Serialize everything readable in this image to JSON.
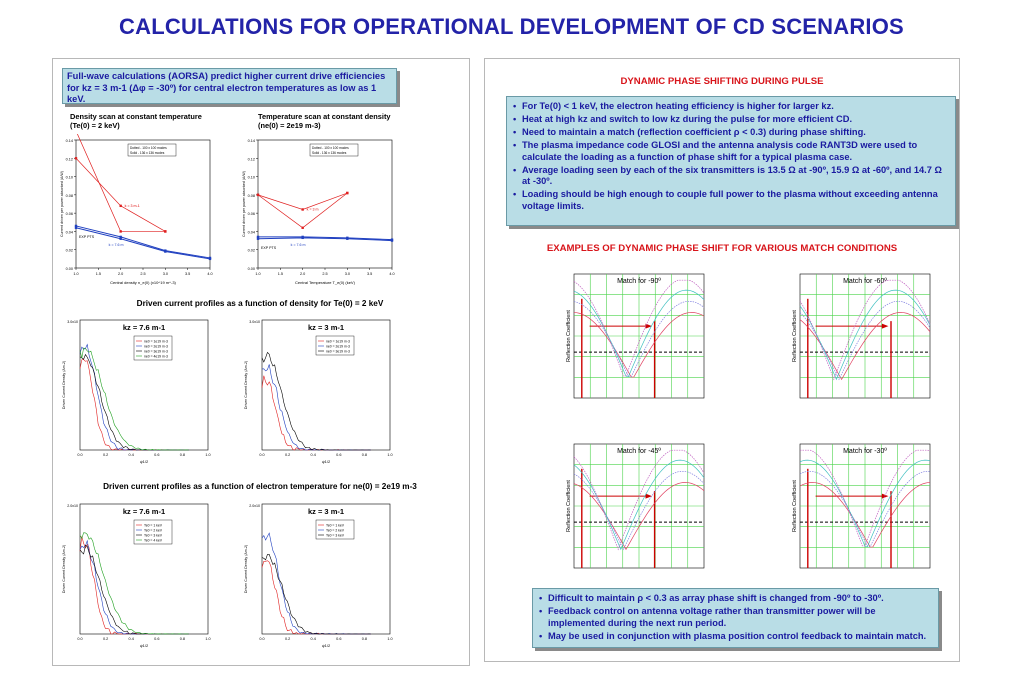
{
  "title": "CALCULATIONS FOR OPERATIONAL DEVELOPMENT OF CD SCENARIOS",
  "left_callout": "Full-wave calculations (AORSA) predict higher current drive efficiencies for kz = 3 m-1 (Δφ = -30º) for central electron temperatures as low as 1 keV.",
  "scan_density": {
    "caption_line1": "Density scan at constant temperature",
    "caption_line2": "(Te(0) = 2 keV)",
    "legend_dotted": "Dotted - 100 x 100 modes",
    "legend_solid": "Solid - 136 x 136 modes",
    "xlabel": "Central density n_e(0) (x10^19 m^-3)",
    "ylabel": "Current driven per power absorbed (A/W)",
    "label_k3": "k = 3 m-1",
    "label_k76": "k = 7.6 m",
    "label_exp": "EXP PTS"
  },
  "scan_temperature": {
    "caption_line1": "Temperature scan at constant density",
    "caption_line2": "(ne(0) = 2e19 m-3)",
    "legend_dotted": "Dotted - 100 x 100 modes",
    "legend_solid": "Solid - 136 x 136 modes",
    "xlabel": "Central Temperature T_e(0) (keV)",
    "ylabel": "Current driven per power absorbed (A/W)",
    "label_k3": "k = 3 m",
    "label_k76": "k = 7.6 m",
    "label_exp": "EXP PTS"
  },
  "density_profiles_caption": "Driven current profiles as a function of density for Te(0) = 2 keV",
  "temperature_profiles_caption": "Driven current profiles as a function of electron temperature for ne(0) = 2e19 m-3",
  "profile_plots": {
    "kz76_title": "kz = 7.6 m-1",
    "kz3_title": "kz = 3 m-1",
    "ylabel": "Driven Current Density (Am-2)",
    "xlabel": "ψ1/2",
    "density_legend_76": [
      "ne0 = 1e19 m-3",
      "ne0 = 2e19 m-3",
      "ne0 = 3e19 m-3",
      "ne0 = 4e19 m-3"
    ],
    "density_legend_3": [
      "ne0 = 1e19 m-3",
      "ne0 = 2e19 m-3",
      "ne0 = 3e19 m-3"
    ],
    "temp_legend_76": [
      "Te0 = 1 keV",
      "Te0 = 2 keV",
      "Te0 = 3 keV",
      "Te0 = 4 keV"
    ],
    "temp_legend_3": [
      "Te0 = 1 keV",
      "Te0 = 2 keV",
      "Te0 = 3 keV"
    ],
    "ymax_density": "3.0x10",
    "ymax_temp": "2.0x10"
  },
  "right_heading": "DYNAMIC PHASE SHIFTING DURING PULSE",
  "right_bullets": [
    "For Te(0) < 1 keV, the electron heating efficiency is higher for larger kz.",
    "Heat at high kz and switch to low kz during the pulse for more efficient CD.",
    "Need to maintain a match (reflection coefficient ρ < 0.3) during phase shifting.",
    "The plasma impedance code GLOSI and the antenna analysis code RANT3D were used to calculate the loading as a function of phase shift for a typical plasma case.",
    "Average loading seen by each of the six transmitters is 13.5 Ω at -90º, 15.9 Ω at -60º, and 14.7 Ω at -30º.",
    "Loading should be high enough to couple full power to the plasma without exceeding antenna voltage limits."
  ],
  "examples_heading": "EXAMPLES OF DYNAMIC PHASE SHIFT FOR VARIOUS MATCH CONDITIONS",
  "match_plots": [
    {
      "title": "Match for -90º",
      "ylabel": "Reflection Coefficient"
    },
    {
      "title": "Match for -60º",
      "ylabel": "Reflection Coefficient"
    },
    {
      "title": "Match for -45º",
      "ylabel": "Reflection Coefficient"
    },
    {
      "title": "Match for -30º",
      "ylabel": "Reflection Coefficient"
    }
  ],
  "bottom_bullets": [
    "Difficult to maintain ρ < 0.3 as array phase shift is changed from -90º to -30º.",
    "Feedback control on antenna voltage rather than transmitter power will be implemented during the next run period.",
    "May be used in conjunction with plasma position control feedback to maintain match."
  ],
  "chart_data": [
    {
      "type": "line",
      "title": "Density scan at constant temperature (Te(0) = 2 keV)",
      "xlabel": "Central density n_e(0) (x10^19 m^-3)",
      "ylabel": "Current driven per power absorbed (A/W)",
      "xlim": [
        1.0,
        4.0
      ],
      "ylim": [
        0.0,
        0.14
      ],
      "series": [
        {
          "name": "k = 3 m-1",
          "x": [
            1.0,
            2.0,
            3.0
          ],
          "values": [
            0.12,
            0.068,
            0.04
          ]
        },
        {
          "name": "k = 3 m-1",
          "x": [
            1.0,
            2.0,
            3.0
          ],
          "values": [
            0.15,
            0.04,
            0.04
          ]
        },
        {
          "name": "k = 7.6 m",
          "x": [
            1.0,
            2.0,
            3.0,
            4.0
          ],
          "values": [
            0.046,
            0.034,
            0.019,
            0.011
          ]
        },
        {
          "name": "k = 7.6 m",
          "x": [
            1.0,
            2.0,
            3.0,
            4.0
          ],
          "values": [
            0.044,
            0.032,
            0.018,
            0.01
          ]
        }
      ]
    },
    {
      "type": "line",
      "title": "Temperature scan at constant density (ne(0) = 2e19 m-3)",
      "xlabel": "Central Temperature T_e(0) (keV)",
      "ylabel": "Current driven per power absorbed (A/W)",
      "xlim": [
        1.0,
        4.0
      ],
      "ylim": [
        0.0,
        0.14
      ],
      "series": [
        {
          "name": "k = 3 m",
          "x": [
            1.0,
            2.0,
            3.0
          ],
          "values": [
            0.08,
            0.064,
            0.082
          ]
        },
        {
          "name": "k = 3 m",
          "x": [
            1.0,
            2.0,
            3.0
          ],
          "values": [
            0.08,
            0.044,
            0.082
          ]
        },
        {
          "name": "k = 7.6 m",
          "x": [
            1.0,
            2.0,
            3.0,
            4.0
          ],
          "values": [
            0.034,
            0.034,
            0.033,
            0.031
          ]
        },
        {
          "name": "k = 7.6 m",
          "x": [
            1.0,
            2.0,
            3.0,
            4.0
          ],
          "values": [
            0.032,
            0.033,
            0.032,
            0.03
          ]
        }
      ]
    }
  ],
  "colors": {
    "title": "#2323a8",
    "heading_red": "#d8141a",
    "callout_bg": "#b9dde6",
    "callout_text": "#1a1aa0"
  }
}
